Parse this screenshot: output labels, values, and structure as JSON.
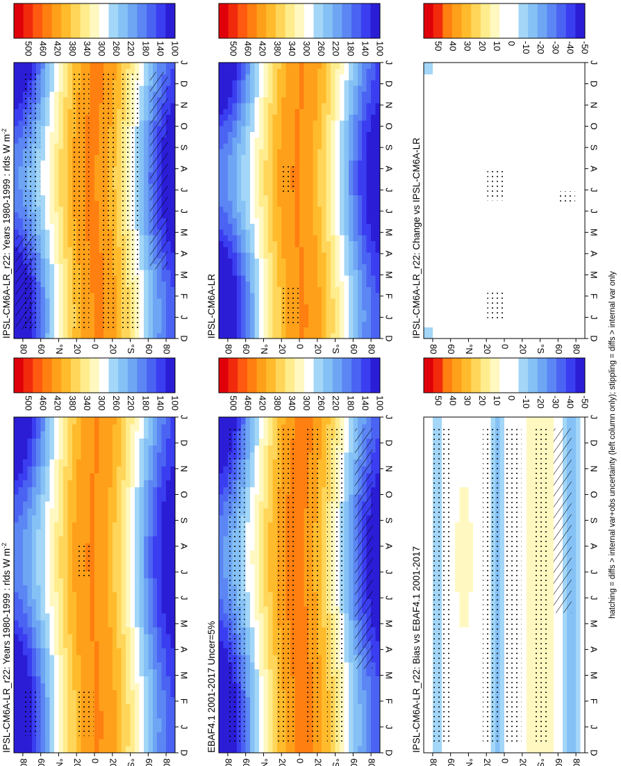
{
  "figure_note": "hatching = diffs > internal var+obs uncertainty (left column only); stippling = diffs > internal var only",
  "month_labels": [
    "D",
    "J",
    "F",
    "M",
    "A",
    "M",
    "J",
    "J",
    "A",
    "S",
    "O",
    "N",
    "D",
    "J"
  ],
  "lat_labels": [
    "80",
    "60",
    "°N",
    "20",
    "0",
    "20",
    "°S",
    "60",
    "80"
  ],
  "chart_data": [
    {
      "type": "heatmap",
      "title": "IPSL-CM6A-LR_r22: Years 1980-1999 : rlds W m",
      "title_sup": "-2",
      "x": "month",
      "y": "latitude",
      "colorbar_ticks": [
        "500",
        "460",
        "420",
        "380",
        "340",
        "300",
        "260",
        "220",
        "180",
        "140",
        "100"
      ],
      "color_range": [
        80,
        520
      ],
      "grid": false,
      "stipple_regions": [
        {
          "lat": 70,
          "month_from": 0.4,
          "month_to": 11.6
        },
        {
          "lat": 15,
          "month_from": 0.4,
          "month_to": 11.6
        },
        {
          "lat": -15,
          "month_from": 0.4,
          "month_to": 11.6
        },
        {
          "lat": -40,
          "month_from": 0.4,
          "month_to": 11.6
        }
      ],
      "hatch_regions": [
        {
          "lat": -72,
          "month_from": 3,
          "month_to": 11.6
        },
        {
          "lat": 78,
          "month_from": 0.4,
          "month_to": 4.5
        }
      ]
    },
    {
      "type": "heatmap",
      "title": "IPSL-CM6A-LR_r22: Years 1980-1999 : rlds W m",
      "title_sup": "-2",
      "x": "month",
      "y": "latitude",
      "colorbar_ticks": [
        "500",
        "460",
        "420",
        "380",
        "340",
        "300",
        "260",
        "220",
        "180",
        "140",
        "100"
      ],
      "color_range": [
        80,
        520
      ],
      "grid": false,
      "stipple_regions": [
        {
          "lat": 70,
          "month_from": 0.6,
          "month_to": 2.2
        },
        {
          "lat": 10,
          "month_from": 0.6,
          "month_to": 2.2
        },
        {
          "lat": 12,
          "month_from": 6.3,
          "month_to": 7.5
        }
      ],
      "hatch_regions": []
    },
    {
      "type": "heatmap",
      "title": "EBAF4.1 2001-2017 Uncer=5%",
      "title_sup": "",
      "x": "month",
      "y": "latitude",
      "colorbar_ticks": [
        "500",
        "460",
        "420",
        "380",
        "340",
        "300",
        "260",
        "220",
        "180",
        "140",
        "100"
      ],
      "color_range": [
        80,
        520
      ],
      "grid": false,
      "stipple_regions": [
        {
          "lat": 70,
          "month_from": 0.4,
          "month_to": 11.6
        },
        {
          "lat": 15,
          "month_from": 0.4,
          "month_to": 11.6
        },
        {
          "lat": -15,
          "month_from": 0.4,
          "month_to": 11.6
        },
        {
          "lat": -40,
          "month_from": 0.4,
          "month_to": 11.6
        }
      ],
      "hatch_regions": [
        {
          "lat": -72,
          "month_from": 3,
          "month_to": 11.6
        }
      ]
    },
    {
      "type": "heatmap",
      "title": "IPSL-CM6A-LR",
      "title_sup": "",
      "x": "month",
      "y": "latitude",
      "colorbar_ticks": [
        "500",
        "460",
        "420",
        "380",
        "340",
        "300",
        "260",
        "220",
        "180",
        "140",
        "100"
      ],
      "color_range": [
        80,
        520
      ],
      "grid": false,
      "stipple_regions": [
        {
          "lat": 10,
          "month_from": 0.6,
          "month_to": 2.2
        },
        {
          "lat": 12,
          "month_from": 6.3,
          "month_to": 7.5
        }
      ],
      "hatch_regions": []
    },
    {
      "type": "heatmap",
      "title": "IPSL-CM6A-LR_r22: Bias vs EBAF4.1 2001-2017",
      "title_sup": "",
      "x": "month",
      "y": "latitude",
      "colorbar_ticks": [
        "50",
        "40",
        "30",
        "20",
        "10",
        "0",
        "-10",
        "-20",
        "-30",
        "-40",
        "-50"
      ],
      "color_range": [
        -55,
        55
      ],
      "grid": false,
      "stipple_regions": [
        {
          "lat": 70,
          "month_from": 0.4,
          "month_to": 11.6
        },
        {
          "lat": 15,
          "month_from": 0.4,
          "month_to": 11.6
        },
        {
          "lat": -10,
          "month_from": 0.4,
          "month_to": 11.6
        },
        {
          "lat": -40,
          "month_from": 0.4,
          "month_to": 11.6
        }
      ],
      "hatch_regions": [
        {
          "lat": -65,
          "month_from": 5,
          "month_to": 11.6
        }
      ]
    },
    {
      "type": "heatmap",
      "title": "IPSL-CM6A-LR_r22: Change vs IPSL-CM6A-LR",
      "title_sup": "",
      "x": "month",
      "y": "latitude",
      "colorbar_ticks": [
        "50",
        "40",
        "30",
        "20",
        "10",
        "0",
        "-10",
        "-20",
        "-30",
        "-40",
        "-50"
      ],
      "color_range": [
        -55,
        55
      ],
      "grid": false,
      "stipple_regions": [
        {
          "lat": 10,
          "month_from": 0.8,
          "month_to": 2.0
        },
        {
          "lat": 10,
          "month_from": 6.0,
          "month_to": 7.3
        },
        {
          "lat": -70,
          "month_from": 5.8,
          "month_to": 6.4
        }
      ],
      "hatch_regions": []
    }
  ]
}
